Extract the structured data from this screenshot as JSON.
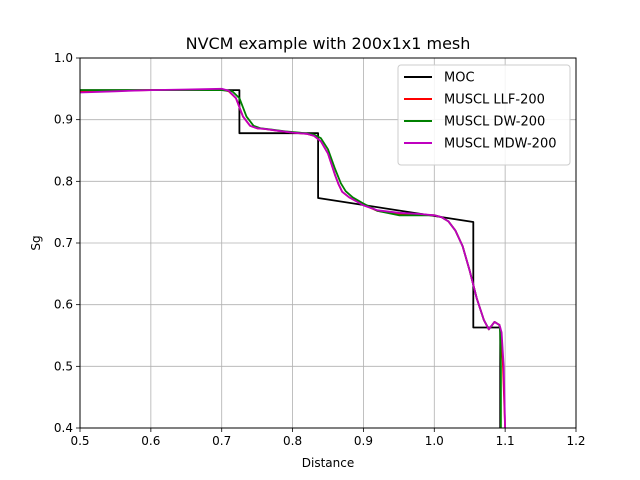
{
  "chart_data": {
    "type": "line",
    "title": "NVCM example with 200x1x1 mesh",
    "xlabel": "Distance",
    "ylabel": "Sg",
    "xlim": [
      0.5,
      1.2
    ],
    "ylim": [
      0.4,
      1.0
    ],
    "xticks": [
      0.5,
      0.6,
      0.7,
      0.8,
      0.9,
      1.0,
      1.1,
      1.2
    ],
    "xtick_labels": [
      "0.5",
      "0.6",
      "0.7",
      "0.8",
      "0.9",
      "1.0",
      "1.1",
      "1.2"
    ],
    "yticks": [
      0.4,
      0.5,
      0.6,
      0.7,
      0.8,
      0.9,
      1.0
    ],
    "ytick_labels": [
      "0.4",
      "0.5",
      "0.6",
      "0.7",
      "0.8",
      "0.9",
      "1.0"
    ],
    "grid": true,
    "legend_position": "upper-right",
    "series": [
      {
        "name": "MOC",
        "color": "#000000",
        "points": [
          [
            0.5,
            0.948
          ],
          [
            0.725,
            0.948
          ],
          [
            0.725,
            0.878
          ],
          [
            0.836,
            0.878
          ],
          [
            0.836,
            0.773
          ],
          [
            1.055,
            0.734
          ],
          [
            1.055,
            0.563
          ],
          [
            1.093,
            0.563
          ],
          [
            1.093,
            0.4
          ]
        ]
      },
      {
        "name": "MUSCL LLF-200",
        "color": "#ff0000",
        "points": [
          [
            0.5,
            0.946
          ],
          [
            0.55,
            0.947
          ],
          [
            0.6,
            0.948
          ],
          [
            0.65,
            0.948
          ],
          [
            0.7,
            0.949
          ],
          [
            0.71,
            0.946
          ],
          [
            0.72,
            0.935
          ],
          [
            0.73,
            0.905
          ],
          [
            0.74,
            0.89
          ],
          [
            0.75,
            0.886
          ],
          [
            0.76,
            0.885
          ],
          [
            0.78,
            0.882
          ],
          [
            0.8,
            0.879
          ],
          [
            0.82,
            0.877
          ],
          [
            0.83,
            0.874
          ],
          [
            0.84,
            0.865
          ],
          [
            0.85,
            0.845
          ],
          [
            0.86,
            0.81
          ],
          [
            0.865,
            0.795
          ],
          [
            0.87,
            0.783
          ],
          [
            0.88,
            0.774
          ],
          [
            0.9,
            0.762
          ],
          [
            0.92,
            0.752
          ],
          [
            0.95,
            0.747
          ],
          [
            0.98,
            0.746
          ],
          [
            1.0,
            0.745
          ],
          [
            1.01,
            0.742
          ],
          [
            1.02,
            0.735
          ],
          [
            1.03,
            0.72
          ],
          [
            1.04,
            0.695
          ],
          [
            1.05,
            0.655
          ],
          [
            1.06,
            0.61
          ],
          [
            1.07,
            0.575
          ],
          [
            1.077,
            0.56
          ],
          [
            1.085,
            0.572
          ],
          [
            1.092,
            0.567
          ],
          [
            1.094,
            0.555
          ],
          [
            1.097,
            0.5
          ],
          [
            1.1,
            0.4
          ]
        ]
      },
      {
        "name": "MUSCL DW-200",
        "color": "#008000",
        "points": [
          [
            0.5,
            0.948
          ],
          [
            0.55,
            0.948
          ],
          [
            0.6,
            0.948
          ],
          [
            0.65,
            0.948
          ],
          [
            0.7,
            0.948
          ],
          [
            0.715,
            0.946
          ],
          [
            0.725,
            0.935
          ],
          [
            0.735,
            0.905
          ],
          [
            0.745,
            0.89
          ],
          [
            0.755,
            0.886
          ],
          [
            0.77,
            0.884
          ],
          [
            0.79,
            0.881
          ],
          [
            0.81,
            0.879
          ],
          [
            0.83,
            0.876
          ],
          [
            0.84,
            0.87
          ],
          [
            0.85,
            0.852
          ],
          [
            0.86,
            0.82
          ],
          [
            0.868,
            0.797
          ],
          [
            0.875,
            0.784
          ],
          [
            0.885,
            0.774
          ],
          [
            0.9,
            0.764
          ],
          [
            0.92,
            0.752
          ],
          [
            0.95,
            0.745
          ],
          [
            0.98,
            0.745
          ],
          [
            1.0,
            0.745
          ],
          [
            1.01,
            0.742
          ],
          [
            1.02,
            0.735
          ],
          [
            1.03,
            0.72
          ],
          [
            1.04,
            0.695
          ],
          [
            1.05,
            0.655
          ],
          [
            1.06,
            0.61
          ],
          [
            1.07,
            0.575
          ],
          [
            1.077,
            0.56
          ],
          [
            1.085,
            0.572
          ],
          [
            1.092,
            0.567
          ],
          [
            1.093,
            0.555
          ],
          [
            1.094,
            0.5
          ],
          [
            1.094,
            0.4
          ]
        ]
      },
      {
        "name": "MUSCL MDW-200",
        "color": "#bf00bf",
        "points": [
          [
            0.5,
            0.944
          ],
          [
            0.55,
            0.946
          ],
          [
            0.6,
            0.948
          ],
          [
            0.65,
            0.949
          ],
          [
            0.7,
            0.95
          ],
          [
            0.71,
            0.947
          ],
          [
            0.72,
            0.935
          ],
          [
            0.73,
            0.905
          ],
          [
            0.74,
            0.89
          ],
          [
            0.75,
            0.886
          ],
          [
            0.76,
            0.885
          ],
          [
            0.78,
            0.882
          ],
          [
            0.8,
            0.879
          ],
          [
            0.82,
            0.877
          ],
          [
            0.83,
            0.874
          ],
          [
            0.84,
            0.865
          ],
          [
            0.85,
            0.845
          ],
          [
            0.86,
            0.81
          ],
          [
            0.865,
            0.795
          ],
          [
            0.87,
            0.783
          ],
          [
            0.88,
            0.774
          ],
          [
            0.9,
            0.761
          ],
          [
            0.92,
            0.753
          ],
          [
            0.95,
            0.749
          ],
          [
            0.98,
            0.747
          ],
          [
            1.0,
            0.745
          ],
          [
            1.01,
            0.742
          ],
          [
            1.02,
            0.735
          ],
          [
            1.03,
            0.72
          ],
          [
            1.04,
            0.695
          ],
          [
            1.05,
            0.655
          ],
          [
            1.06,
            0.61
          ],
          [
            1.07,
            0.575
          ],
          [
            1.077,
            0.56
          ],
          [
            1.085,
            0.572
          ],
          [
            1.092,
            0.567
          ],
          [
            1.095,
            0.555
          ],
          [
            1.098,
            0.5
          ],
          [
            1.1,
            0.4
          ]
        ]
      }
    ]
  }
}
